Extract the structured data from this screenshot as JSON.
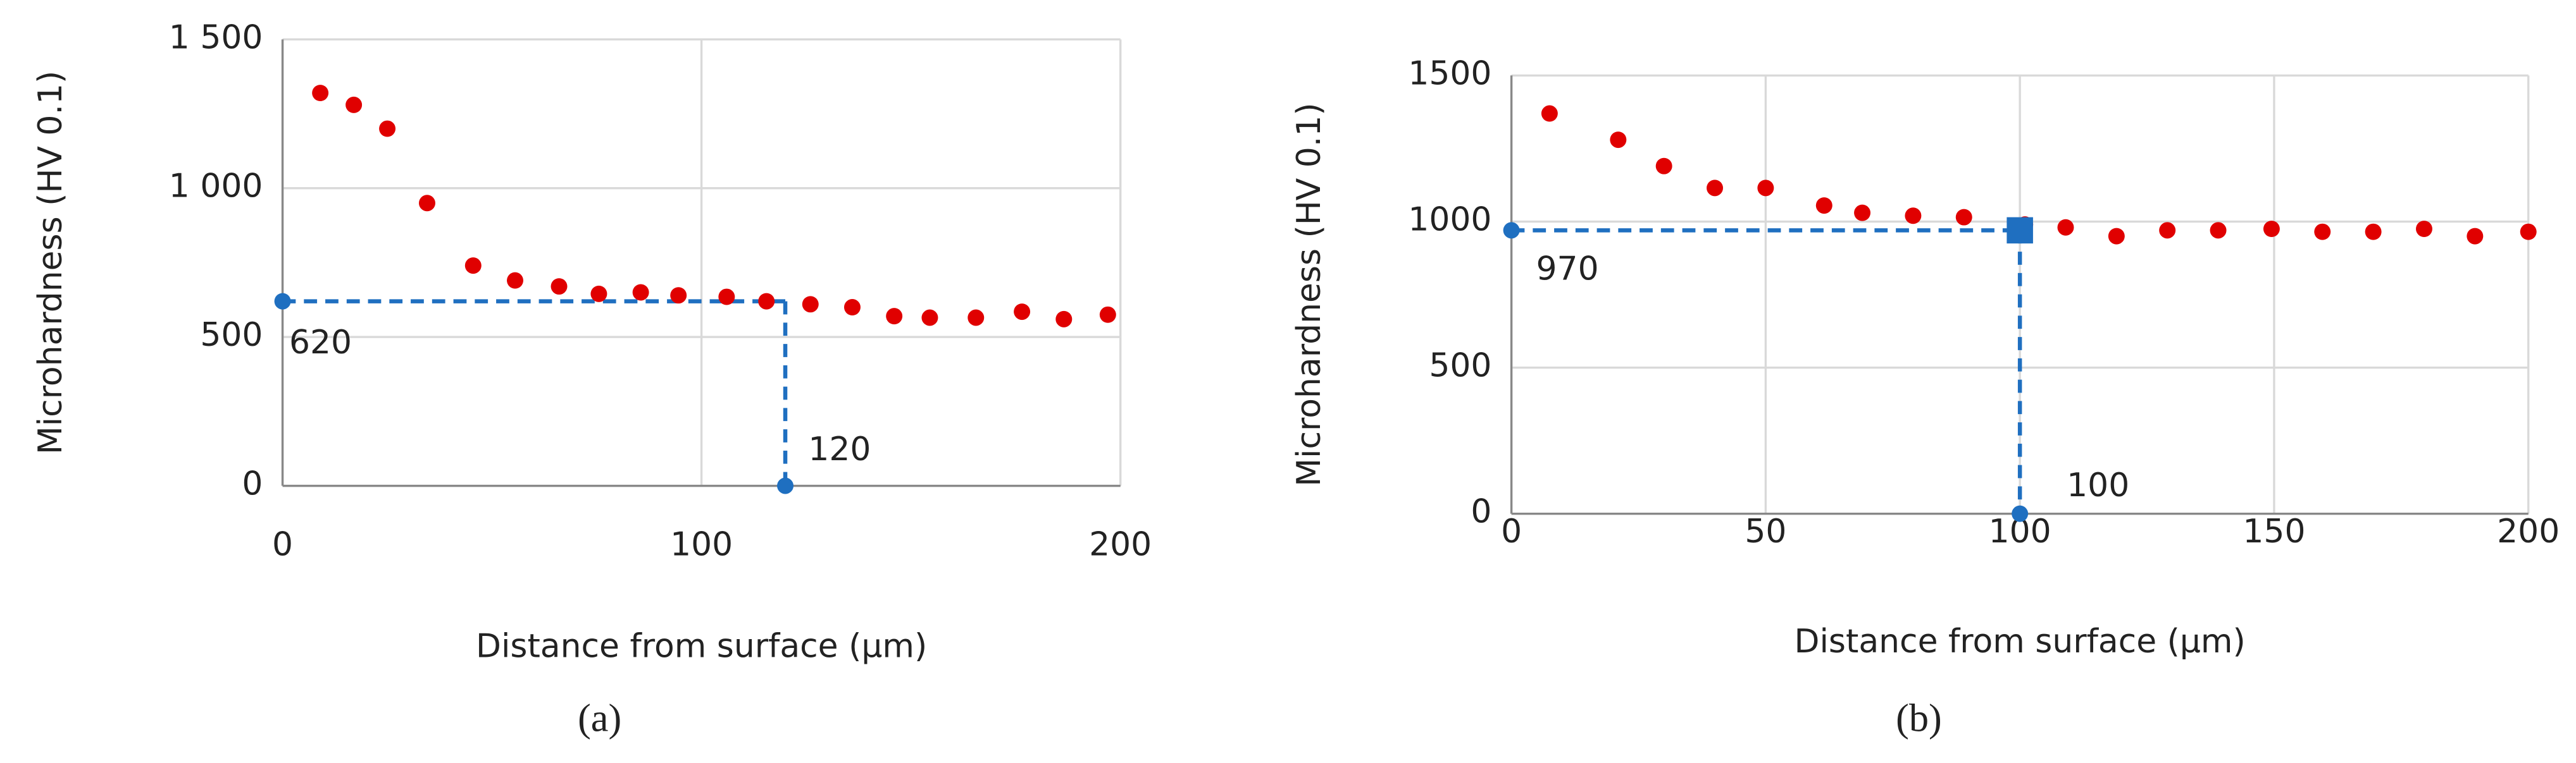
{
  "chart_data": [
    {
      "type": "scatter",
      "caption": "(a)",
      "xlabel": "Distance from surface (μm)",
      "ylabel": "Microhardness (HV 0.1)",
      "x": [
        9,
        17,
        25,
        34.5,
        45.5,
        55.5,
        66,
        75.5,
        85.5,
        94.5,
        106,
        115.5,
        126,
        136,
        146,
        154.5,
        165.5,
        176.5,
        186.5,
        197
      ],
      "values": [
        1320,
        1280,
        1200,
        950,
        740,
        690,
        670,
        645,
        650,
        640,
        635,
        620,
        610,
        600,
        570,
        565,
        565,
        585,
        560,
        575
      ],
      "color": "#e00000",
      "xlim": [
        0,
        200
      ],
      "xticks": [
        0,
        100,
        200
      ],
      "ylim": [
        0,
        1500
      ],
      "yticks": [
        0,
        500,
        {
          "value": 1000,
          "label": "1 000"
        },
        {
          "value": 1500,
          "label": "1 500"
        }
      ],
      "grid": true,
      "guide": {
        "x": 120,
        "y": 620,
        "color": "#1f6fc0"
      }
    },
    {
      "type": "scatter",
      "caption": "(b)",
      "xlabel": "Distance from surface (μm)",
      "ylabel": "Microhardness (HV 0.1)",
      "x": [
        7.5,
        21,
        30,
        40,
        50,
        61.5,
        69,
        79,
        89,
        101,
        109,
        119,
        129,
        139,
        149.5,
        159.5,
        169.5,
        179.5,
        189.5,
        200
      ],
      "values": [
        1370,
        1280,
        1190,
        1115,
        1115,
        1055,
        1030,
        1020,
        1015,
        990,
        980,
        950,
        970,
        970,
        975,
        965,
        965,
        975,
        950,
        965
      ],
      "color": "#e00000",
      "xlim": [
        0,
        200
      ],
      "xticks": [
        0,
        50,
        100,
        150,
        200
      ],
      "ylim": [
        0,
        1500
      ],
      "yticks": [
        0,
        500,
        1000,
        1500
      ],
      "grid": true,
      "guide": {
        "x": 100,
        "y": 970,
        "color": "#1f6fc0",
        "point": "square"
      }
    }
  ]
}
